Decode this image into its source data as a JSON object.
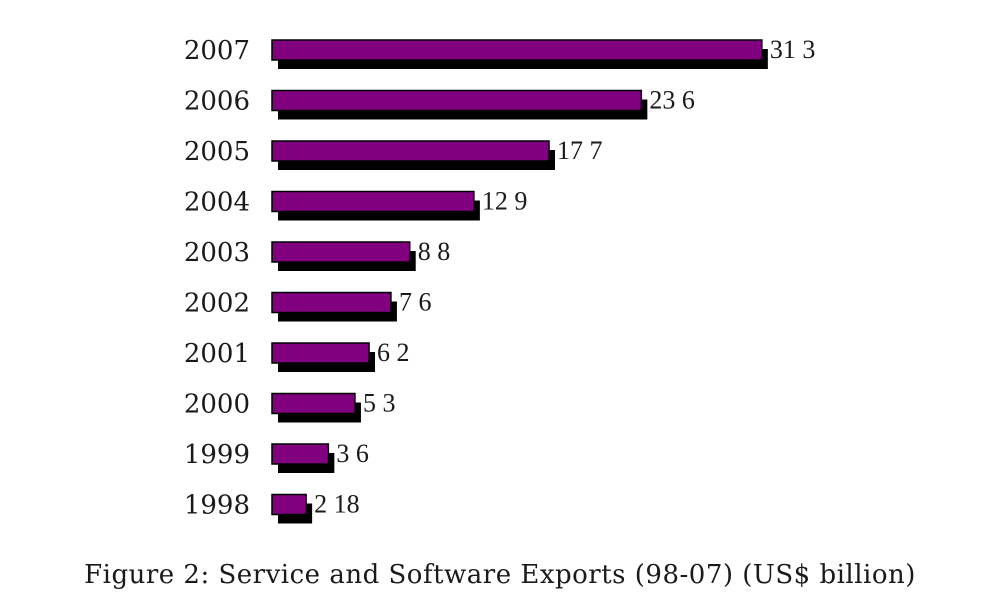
{
  "chart_data": {
    "type": "bar",
    "orientation": "horizontal",
    "categories": [
      "2007",
      "2006",
      "2005",
      "2004",
      "2003",
      "2002",
      "2001",
      "2000",
      "1999",
      "1998"
    ],
    "values": [
      31.3,
      23.6,
      17.7,
      12.9,
      8.8,
      7.6,
      6.2,
      5.3,
      3.6,
      2.18
    ],
    "value_labels": [
      "31 3",
      "23 6",
      "17 7",
      "12 9",
      "8 8",
      "7 6",
      "6 2",
      "5 3",
      "3 6",
      "2 18"
    ],
    "title": "Figure 2: Service and Software Exports (98-07) (US$ billion)",
    "xlabel": "",
    "ylabel": "",
    "grid": false,
    "legend": "none"
  },
  "colors": {
    "bar_fill": "#800080",
    "bar_shadow": "#000000",
    "text": "#1a1a1a",
    "background": "#ffffff"
  }
}
